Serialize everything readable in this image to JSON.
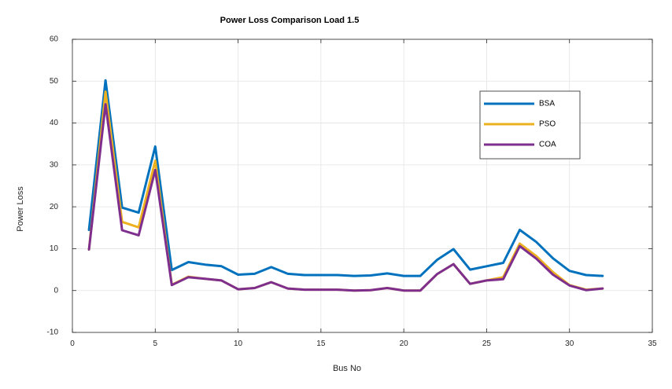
{
  "chart_data": {
    "type": "line",
    "title": "Power Loss Comparison Load 1.5",
    "xlabel": "Bus No",
    "ylabel": "Power Loss",
    "xlim": [
      0,
      35
    ],
    "ylim": [
      -10,
      60
    ],
    "xticks": [
      0,
      5,
      10,
      15,
      20,
      25,
      30,
      35
    ],
    "yticks": [
      -10,
      0,
      10,
      20,
      30,
      40,
      50,
      60
    ],
    "grid": true,
    "legend_position": "top-right",
    "x": [
      1,
      2,
      3,
      4,
      5,
      6,
      7,
      8,
      9,
      10,
      11,
      12,
      13,
      14,
      15,
      16,
      17,
      18,
      19,
      20,
      21,
      22,
      23,
      24,
      25,
      26,
      27,
      28,
      29,
      30,
      31,
      32
    ],
    "series": [
      {
        "name": "BSA",
        "color": "#0072BD",
        "values": [
          14.5,
          50.2,
          19.8,
          18.6,
          34.4,
          4.9,
          6.8,
          6.2,
          5.8,
          3.8,
          4.0,
          5.6,
          4.0,
          3.7,
          3.7,
          3.7,
          3.5,
          3.6,
          4.1,
          3.5,
          3.5,
          7.3,
          9.9,
          5.0,
          5.8,
          6.6,
          14.5,
          11.6,
          7.7,
          4.7,
          3.7,
          3.5
        ]
      },
      {
        "name": "PSO",
        "color": "#EDB120",
        "values": [
          9.8,
          47.5,
          16.4,
          15.1,
          31.0,
          1.4,
          3.3,
          2.8,
          2.4,
          0.3,
          0.6,
          2.0,
          0.5,
          0.2,
          0.2,
          0.2,
          0.0,
          0.1,
          0.6,
          0.0,
          0.0,
          3.9,
          6.3,
          1.6,
          2.4,
          3.2,
          11.2,
          8.2,
          4.4,
          1.3,
          0.2,
          0.5
        ]
      },
      {
        "name": "COA",
        "color": "#7E2F8E",
        "values": [
          9.8,
          44.5,
          14.4,
          13.2,
          28.8,
          1.3,
          3.2,
          2.8,
          2.4,
          0.3,
          0.6,
          2.0,
          0.5,
          0.2,
          0.2,
          0.2,
          0.0,
          0.1,
          0.6,
          0.0,
          0.0,
          3.9,
          6.3,
          1.6,
          2.4,
          2.7,
          10.6,
          7.6,
          3.8,
          1.2,
          0.1,
          0.5
        ]
      }
    ]
  }
}
